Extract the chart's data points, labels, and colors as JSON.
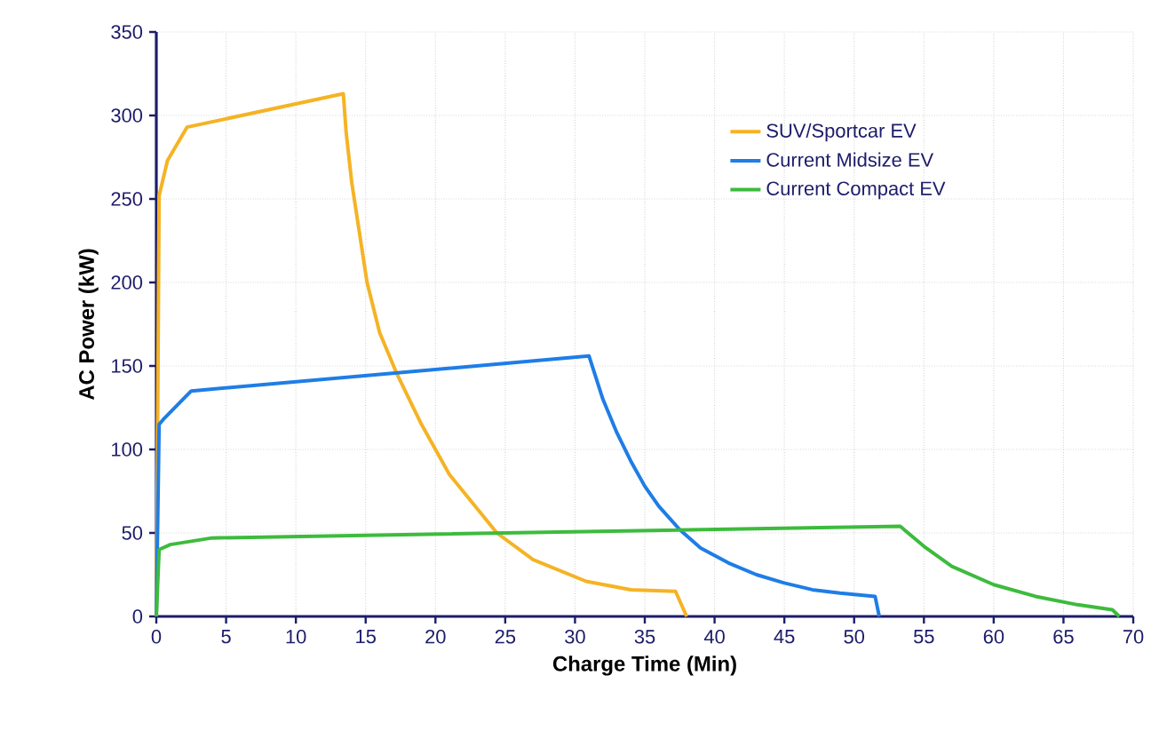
{
  "chart_data": {
    "type": "line",
    "xlabel": "Charge Time (Min)",
    "ylabel": "AC Power (kW)",
    "xlim": [
      0,
      70
    ],
    "ylim": [
      0,
      350
    ],
    "xticks": [
      0,
      5,
      10,
      15,
      20,
      25,
      30,
      35,
      40,
      45,
      50,
      55,
      60,
      65,
      70
    ],
    "yticks": [
      0,
      50,
      100,
      150,
      200,
      250,
      300,
      350
    ],
    "grid": true,
    "legend": "right",
    "line_style": "solid",
    "marker": "none",
    "series": [
      {
        "name": "SUV/Sportcar EV",
        "color": "#f5b324",
        "x": [
          0,
          0.1,
          0.2,
          0.8,
          2.2,
          13.4,
          13.6,
          14,
          15.1,
          16,
          17.2,
          19,
          21,
          24.4,
          27,
          30.8,
          34,
          37.2,
          38
        ],
        "values": [
          0,
          121,
          252,
          273,
          293,
          313,
          290,
          260,
          200,
          170,
          146,
          115,
          85,
          50,
          34,
          21,
          16,
          15,
          0
        ]
      },
      {
        "name": "Current Midsize EV",
        "color": "#1f7de6",
        "x": [
          0,
          0.2,
          0.5,
          2.5,
          31,
          32,
          33,
          34,
          35,
          36,
          37.5,
          39,
          41,
          43,
          45,
          47,
          49,
          51.5,
          51.8
        ],
        "values": [
          0,
          115,
          118,
          135,
          156,
          130,
          110,
          93,
          78,
          66,
          52,
          41,
          32,
          25,
          20,
          16,
          14,
          12,
          0
        ]
      },
      {
        "name": "Current Compact EV",
        "color": "#3dbb3d",
        "x": [
          0,
          0.2,
          1,
          4,
          53.3,
          55,
          57,
          60,
          63,
          66,
          68.5,
          69
        ],
        "values": [
          0,
          40,
          43,
          47,
          54,
          42,
          30,
          19,
          12,
          7,
          4,
          0
        ]
      }
    ]
  }
}
